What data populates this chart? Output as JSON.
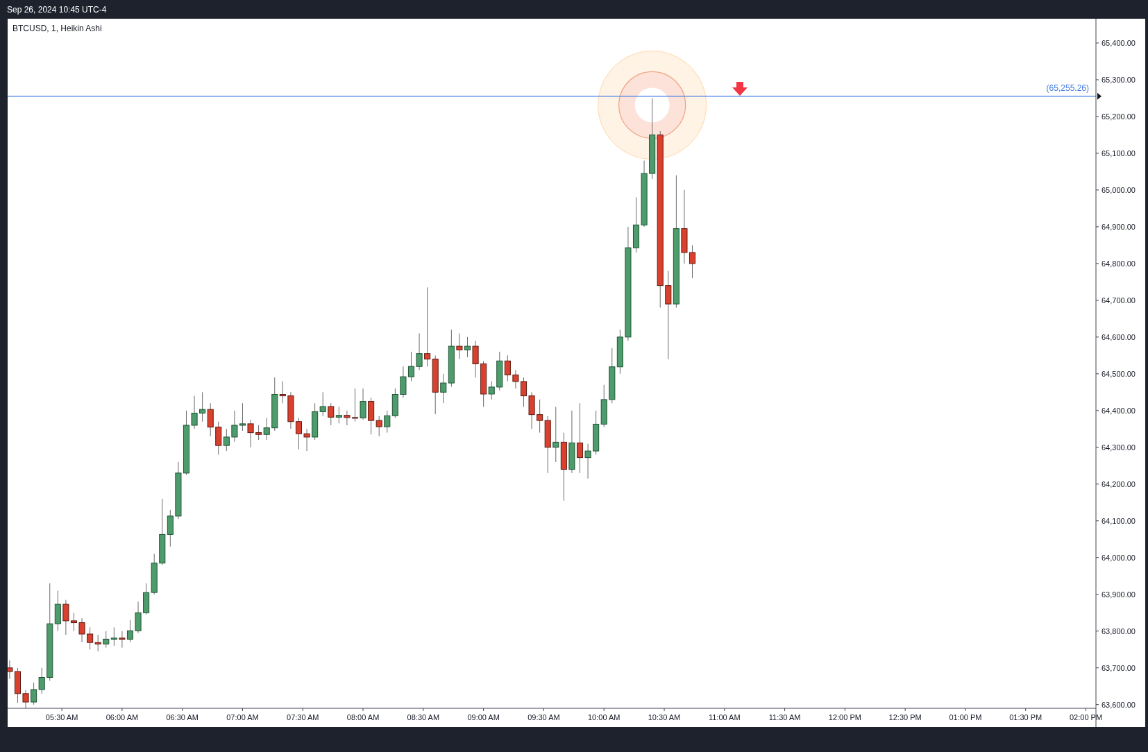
{
  "chart_data": {
    "type": "candlestick",
    "title": "BTCUSD, 1, Heikin Ashi",
    "subtitle": "Sep 26, 2024 10:45 UTC-4",
    "x": [
      "2024-09-26T05:04",
      "2024-09-26T05:08",
      "2024-09-26T05:12",
      "2024-09-26T05:16",
      "2024-09-26T05:20",
      "2024-09-26T05:24",
      "2024-09-26T05:28",
      "2024-09-26T05:32",
      "2024-09-26T05:36",
      "2024-09-26T05:40",
      "2024-09-26T05:44",
      "2024-09-26T05:48",
      "2024-09-26T05:52",
      "2024-09-26T05:56",
      "2024-09-26T06:00",
      "2024-09-26T06:04",
      "2024-09-26T06:08",
      "2024-09-26T06:12",
      "2024-09-26T06:16",
      "2024-09-26T06:20",
      "2024-09-26T06:24",
      "2024-09-26T06:28",
      "2024-09-26T06:32",
      "2024-09-26T06:36",
      "2024-09-26T06:40",
      "2024-09-26T06:44",
      "2024-09-26T06:48",
      "2024-09-26T06:52",
      "2024-09-26T06:56",
      "2024-09-26T07:00",
      "2024-09-26T07:04",
      "2024-09-26T07:08",
      "2024-09-26T07:12",
      "2024-09-26T07:16",
      "2024-09-26T07:20",
      "2024-09-26T07:24",
      "2024-09-26T07:28",
      "2024-09-26T07:32",
      "2024-09-26T07:36",
      "2024-09-26T07:40",
      "2024-09-26T07:44",
      "2024-09-26T07:48",
      "2024-09-26T07:52",
      "2024-09-26T07:56",
      "2024-09-26T08:00",
      "2024-09-26T08:04",
      "2024-09-26T08:08",
      "2024-09-26T08:12",
      "2024-09-26T08:16",
      "2024-09-26T08:20",
      "2024-09-26T08:24",
      "2024-09-26T08:28",
      "2024-09-26T08:32",
      "2024-09-26T08:36",
      "2024-09-26T08:40",
      "2024-09-26T08:44",
      "2024-09-26T08:48",
      "2024-09-26T08:52",
      "2024-09-26T08:56",
      "2024-09-26T09:00",
      "2024-09-26T09:04",
      "2024-09-26T09:08",
      "2024-09-26T09:12",
      "2024-09-26T09:16",
      "2024-09-26T09:20",
      "2024-09-26T09:24",
      "2024-09-26T09:28",
      "2024-09-26T09:32",
      "2024-09-26T09:36",
      "2024-09-26T09:40",
      "2024-09-26T09:44",
      "2024-09-26T09:48",
      "2024-09-26T09:52",
      "2024-09-26T09:56",
      "2024-09-26T10:00",
      "2024-09-26T10:04",
      "2024-09-26T10:08",
      "2024-09-26T10:12",
      "2024-09-26T10:16",
      "2024-09-26T10:20",
      "2024-09-26T10:24",
      "2024-09-26T10:28",
      "2024-09-26T10:32",
      "2024-09-26T10:36",
      "2024-09-26T10:40",
      "2024-09-26T10:44"
    ],
    "ohlc": [
      [
        63700,
        63720,
        63670,
        63690
      ],
      [
        63690,
        63700,
        63605,
        63630
      ],
      [
        63630,
        63640,
        63590,
        63607
      ],
      [
        63607,
        63660,
        63600,
        63641
      ],
      [
        63641,
        63700,
        63630,
        63674
      ],
      [
        63674,
        63930,
        63665,
        63820
      ],
      [
        63820,
        63910,
        63800,
        63873
      ],
      [
        63873,
        63885,
        63790,
        63828
      ],
      [
        63828,
        63850,
        63800,
        63823
      ],
      [
        63823,
        63835,
        63770,
        63792
      ],
      [
        63792,
        63810,
        63750,
        63769
      ],
      [
        63769,
        63790,
        63745,
        63765
      ],
      [
        63765,
        63800,
        63755,
        63778
      ],
      [
        63778,
        63810,
        63760,
        63781
      ],
      [
        63781,
        63800,
        63755,
        63778
      ],
      [
        63778,
        63830,
        63770,
        63801
      ],
      [
        63801,
        63880,
        63795,
        63850
      ],
      [
        63850,
        63930,
        63845,
        63905
      ],
      [
        63905,
        64010,
        63900,
        63985
      ],
      [
        63985,
        64160,
        63980,
        64063
      ],
      [
        64063,
        64130,
        64030,
        64113
      ],
      [
        64113,
        64260,
        64105,
        64230
      ],
      [
        64230,
        64400,
        64225,
        64360
      ],
      [
        64360,
        64440,
        64350,
        64393
      ],
      [
        64393,
        64450,
        64370,
        64403
      ],
      [
        64403,
        64420,
        64330,
        64355
      ],
      [
        64355,
        64370,
        64280,
        64305
      ],
      [
        64305,
        64350,
        64290,
        64328
      ],
      [
        64328,
        64400,
        64315,
        64360
      ],
      [
        64360,
        64420,
        64345,
        64364
      ],
      [
        64364,
        64375,
        64300,
        64340
      ],
      [
        64340,
        64360,
        64320,
        64335
      ],
      [
        64335,
        64380,
        64320,
        64353
      ],
      [
        64353,
        64490,
        64345,
        64444
      ],
      [
        64444,
        64480,
        64420,
        64440
      ],
      [
        64440,
        64450,
        64350,
        64370
      ],
      [
        64370,
        64380,
        64295,
        64337
      ],
      [
        64337,
        64350,
        64290,
        64328
      ],
      [
        64328,
        64420,
        64320,
        64397
      ],
      [
        64397,
        64450,
        64385,
        64411
      ],
      [
        64411,
        64420,
        64360,
        64382
      ],
      [
        64382,
        64410,
        64365,
        64387
      ],
      [
        64387,
        64400,
        64360,
        64381
      ],
      [
        64381,
        64460,
        64370,
        64380
      ],
      [
        64380,
        64460,
        64375,
        64425
      ],
      [
        64425,
        64435,
        64335,
        64373
      ],
      [
        64373,
        64385,
        64330,
        64356
      ],
      [
        64356,
        64400,
        64340,
        64386
      ],
      [
        64386,
        64460,
        64380,
        64444
      ],
      [
        64444,
        64520,
        64435,
        64492
      ],
      [
        64492,
        64560,
        64480,
        64520
      ],
      [
        64520,
        64610,
        64510,
        64555
      ],
      [
        64555,
        64735,
        64520,
        64540
      ],
      [
        64540,
        64550,
        64390,
        64450
      ],
      [
        64450,
        64500,
        64420,
        64475
      ],
      [
        64475,
        64620,
        64465,
        64575
      ],
      [
        64575,
        64610,
        64540,
        64565
      ],
      [
        64565,
        64600,
        64545,
        64575
      ],
      [
        64575,
        64590,
        64490,
        64527
      ],
      [
        64527,
        64535,
        64410,
        64445
      ],
      [
        64445,
        64480,
        64430,
        64464
      ],
      [
        64464,
        64560,
        64455,
        64535
      ],
      [
        64535,
        64550,
        64480,
        64497
      ],
      [
        64497,
        64510,
        64460,
        64479
      ],
      [
        64479,
        64490,
        64410,
        64440
      ],
      [
        64440,
        64450,
        64350,
        64389
      ],
      [
        64389,
        64430,
        64340,
        64373
      ],
      [
        64373,
        64385,
        64230,
        64300
      ],
      [
        64300,
        64410,
        64260,
        64314
      ],
      [
        64314,
        64340,
        64155,
        64240
      ],
      [
        64240,
        64400,
        64230,
        64312
      ],
      [
        64312,
        64420,
        64230,
        64272
      ],
      [
        64272,
        64310,
        64215,
        64290
      ],
      [
        64290,
        64400,
        64280,
        64363
      ],
      [
        64363,
        64470,
        64355,
        64430
      ],
      [
        64430,
        64570,
        64420,
        64519
      ],
      [
        64519,
        64620,
        64500,
        64600
      ],
      [
        64600,
        64900,
        64590,
        64843
      ],
      [
        64843,
        64980,
        64830,
        64905
      ],
      [
        64905,
        65080,
        64900,
        65045
      ],
      [
        65045,
        65250,
        65030,
        65150
      ],
      [
        65150,
        65160,
        64680,
        64740
      ],
      [
        64740,
        64780,
        64540,
        64690
      ],
      [
        64690,
        65040,
        64680,
        64895
      ],
      [
        64895,
        65000,
        64800,
        64830
      ],
      [
        64830,
        64850,
        64760,
        64800
      ]
    ],
    "xlim": [
      "2024-09-26T05:03",
      "2024-09-26T14:05"
    ],
    "xticks": [
      {
        "value": "2024-09-26T05:30",
        "label": "05:30 AM"
      },
      {
        "value": "2024-09-26T06:00",
        "label": "06:00 AM"
      },
      {
        "value": "2024-09-26T06:30",
        "label": "06:30 AM"
      },
      {
        "value": "2024-09-26T07:00",
        "label": "07:00 AM"
      },
      {
        "value": "2024-09-26T07:30",
        "label": "07:30 AM"
      },
      {
        "value": "2024-09-26T08:00",
        "label": "08:00 AM"
      },
      {
        "value": "2024-09-26T08:30",
        "label": "08:30 AM"
      },
      {
        "value": "2024-09-26T09:00",
        "label": "09:00 AM"
      },
      {
        "value": "2024-09-26T09:30",
        "label": "09:30 AM"
      },
      {
        "value": "2024-09-26T10:00",
        "label": "10:00 AM"
      },
      {
        "value": "2024-09-26T10:30",
        "label": "10:30 AM"
      },
      {
        "value": "2024-09-26T11:00",
        "label": "11:00 AM"
      },
      {
        "value": "2024-09-26T11:30",
        "label": "11:30 AM"
      },
      {
        "value": "2024-09-26T12:00",
        "label": "12:00 PM"
      },
      {
        "value": "2024-09-26T12:30",
        "label": "12:30 PM"
      },
      {
        "value": "2024-09-26T13:00",
        "label": "01:00 PM"
      },
      {
        "value": "2024-09-26T13:30",
        "label": "01:30 PM"
      },
      {
        "value": "2024-09-26T14:00",
        "label": "02:00 PM"
      }
    ],
    "ylim": [
      63590,
      65466
    ],
    "yticks": [
      {
        "value": 63600,
        "label": "63,600.00"
      },
      {
        "value": 63700,
        "label": "63,700.00"
      },
      {
        "value": 63800,
        "label": "63,800.00"
      },
      {
        "value": 63900,
        "label": "63,900.00"
      },
      {
        "value": 64000,
        "label": "64,000.00"
      },
      {
        "value": 64100,
        "label": "64,100.00"
      },
      {
        "value": 64200,
        "label": "64,200.00"
      },
      {
        "value": 64300,
        "label": "64,300.00"
      },
      {
        "value": 64400,
        "label": "64,400.00"
      },
      {
        "value": 64500,
        "label": "64,500.00"
      },
      {
        "value": 64600,
        "label": "64,600.00"
      },
      {
        "value": 64700,
        "label": "64,700.00"
      },
      {
        "value": 64800,
        "label": "64,800.00"
      },
      {
        "value": 64900,
        "label": "64,900.00"
      },
      {
        "value": 65000,
        "label": "65,000.00"
      },
      {
        "value": 65100,
        "label": "65,100.00"
      },
      {
        "value": 65200,
        "label": "65,200.00"
      },
      {
        "value": 65300,
        "label": "65,300.00"
      },
      {
        "value": 65400,
        "label": "65,400.00"
      }
    ],
    "ref_lines": [
      {
        "axis": "y",
        "value": 65255.26,
        "label": "(65,255.26)",
        "color": "#3f7be6"
      }
    ]
  }
}
